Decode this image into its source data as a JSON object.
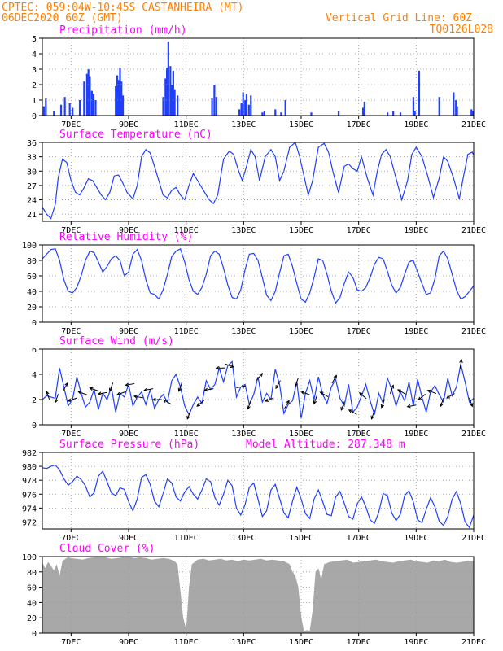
{
  "header": {
    "line1_left": "CPTEC:   059:04W-10:45S   CASTANHEIRA (MT)",
    "line2_left": "06DEC2020 60Z (GMT)",
    "line1_right": "Vertical Grid Line: 60Z",
    "line2_right": "TQ0126L028"
  },
  "x_axis": {
    "tick_labels": [
      "7DEC",
      "9DEC",
      "11DEC",
      "13DEC",
      "15DEC",
      "17DEC",
      "19DEC",
      "21DEC"
    ],
    "tick_days": [
      1,
      3,
      5,
      7,
      9,
      11,
      13,
      15
    ],
    "range_days": [
      0,
      15
    ]
  },
  "colors": {
    "header": "#ff7f00",
    "title": "#ff00ff",
    "series": "#1f3fff",
    "cloud": "#a8a8a8",
    "grid": "#9a9a9a"
  },
  "chart_data": [
    {
      "type": "bar",
      "title": "Precipitation (mm/h)",
      "ylim": [
        0,
        5
      ],
      "yticks": [
        0,
        1,
        2,
        3,
        4,
        5
      ],
      "x": [
        0.05,
        0.12,
        0.4,
        0.65,
        0.78,
        0.95,
        1.05,
        1.3,
        1.45,
        1.55,
        1.6,
        1.65,
        1.72,
        1.78,
        1.85,
        2.55,
        2.6,
        2.65,
        2.7,
        2.75,
        2.8,
        4.2,
        4.28,
        4.33,
        4.38,
        4.45,
        4.5,
        4.55,
        4.6,
        4.7,
        5.9,
        5.98,
        6.05,
        6.85,
        6.92,
        6.98,
        7.05,
        7.1,
        7.18,
        7.25,
        7.65,
        7.72,
        8.1,
        8.3,
        8.45,
        9.35,
        10.3,
        11.15,
        11.2,
        12.0,
        12.2,
        12.45,
        12.9,
        12.95,
        13.1,
        13.8,
        14.3,
        14.38,
        14.42,
        14.92,
        14.97
      ],
      "values": [
        0.6,
        1.1,
        0.3,
        0.7,
        1.2,
        0.8,
        0.5,
        1.0,
        2.2,
        2.7,
        3.0,
        2.5,
        1.6,
        1.4,
        1.0,
        1.9,
        2.6,
        2.3,
        3.1,
        2.2,
        1.3,
        1.2,
        2.4,
        3.1,
        4.8,
        3.2,
        2.0,
        2.9,
        1.7,
        1.3,
        1.1,
        2.0,
        1.2,
        0.4,
        0.8,
        1.5,
        1.0,
        1.4,
        0.7,
        1.3,
        0.2,
        0.3,
        0.4,
        0.2,
        1.0,
        0.2,
        0.3,
        0.5,
        0.9,
        0.2,
        0.3,
        0.2,
        1.2,
        0.3,
        2.9,
        1.2,
        1.5,
        1.0,
        0.6,
        0.4,
        0.3
      ]
    },
    {
      "type": "line",
      "title": "Surface Temperature (nC)",
      "ylim": [
        19.5,
        36
      ],
      "yticks": [
        21,
        24,
        27,
        30,
        33,
        36
      ],
      "x": [
        0.0,
        0.15,
        0.3,
        0.45,
        0.55,
        0.7,
        0.85,
        1.0,
        1.15,
        1.3,
        1.45,
        1.6,
        1.75,
        1.9,
        2.05,
        2.2,
        2.35,
        2.5,
        2.65,
        2.8,
        2.95,
        3.15,
        3.3,
        3.45,
        3.6,
        3.75,
        3.9,
        4.05,
        4.2,
        4.35,
        4.5,
        4.65,
        4.8,
        4.95,
        5.1,
        5.25,
        5.45,
        5.6,
        5.8,
        5.95,
        6.1,
        6.3,
        6.5,
        6.65,
        6.8,
        6.95,
        7.1,
        7.25,
        7.4,
        7.55,
        7.75,
        7.95,
        8.1,
        8.25,
        8.4,
        8.6,
        8.8,
        8.95,
        9.1,
        9.25,
        9.4,
        9.6,
        9.8,
        9.95,
        10.1,
        10.3,
        10.5,
        10.65,
        10.8,
        10.95,
        11.1,
        11.3,
        11.5,
        11.65,
        11.8,
        11.95,
        12.1,
        12.3,
        12.5,
        12.7,
        12.85,
        13.0,
        13.2,
        13.4,
        13.6,
        13.8,
        13.95,
        14.1,
        14.3,
        14.5,
        14.65,
        14.8,
        14.95,
        15.0
      ],
      "values": [
        22.5,
        21.0,
        20.1,
        23.0,
        28.5,
        32.5,
        31.8,
        28.0,
        25.6,
        25.0,
        26.5,
        28.4,
        28.0,
        26.5,
        25.0,
        24.0,
        25.6,
        29.0,
        29.2,
        27.5,
        25.5,
        24.2,
        27.0,
        33.0,
        34.5,
        33.8,
        31.0,
        28.0,
        25.0,
        24.4,
        26.0,
        26.6,
        25.0,
        24.0,
        27.0,
        29.5,
        27.5,
        26.0,
        24.0,
        23.2,
        25.0,
        32.5,
        34.2,
        33.5,
        30.5,
        28.0,
        31.0,
        34.5,
        33.0,
        28.0,
        33.0,
        34.5,
        33.0,
        28.0,
        30.0,
        35.0,
        36.0,
        33.0,
        29.0,
        25.0,
        28.0,
        35.0,
        35.8,
        34.0,
        30.0,
        25.5,
        31.0,
        31.5,
        30.5,
        30.0,
        33.0,
        28.5,
        25.0,
        30.0,
        33.5,
        34.5,
        33.0,
        28.5,
        24.0,
        28.0,
        33.5,
        35.0,
        33.0,
        29.0,
        24.5,
        28.5,
        33.0,
        32.0,
        28.5,
        24.2,
        29.0,
        33.5,
        34.0,
        33.3
      ]
    },
    {
      "type": "line",
      "title": "Relative Humidity (%)",
      "ylim": [
        0,
        100
      ],
      "yticks": [
        0,
        20,
        40,
        60,
        80,
        100
      ],
      "x": [
        0.0,
        0.15,
        0.3,
        0.45,
        0.6,
        0.75,
        0.9,
        1.05,
        1.2,
        1.35,
        1.5,
        1.65,
        1.8,
        1.95,
        2.1,
        2.25,
        2.4,
        2.55,
        2.7,
        2.85,
        3.0,
        3.15,
        3.3,
        3.45,
        3.6,
        3.75,
        3.9,
        4.05,
        4.2,
        4.35,
        4.5,
        4.65,
        4.8,
        4.95,
        5.1,
        5.25,
        5.4,
        5.55,
        5.7,
        5.85,
        6.0,
        6.15,
        6.3,
        6.45,
        6.6,
        6.75,
        6.9,
        7.05,
        7.2,
        7.35,
        7.5,
        7.65,
        7.8,
        7.95,
        8.1,
        8.25,
        8.4,
        8.55,
        8.7,
        8.85,
        9.0,
        9.15,
        9.3,
        9.45,
        9.6,
        9.75,
        9.9,
        10.05,
        10.2,
        10.35,
        10.5,
        10.65,
        10.8,
        10.95,
        11.1,
        11.25,
        11.4,
        11.55,
        11.7,
        11.85,
        12.0,
        12.15,
        12.3,
        12.45,
        12.6,
        12.75,
        12.9,
        13.05,
        13.2,
        13.35,
        13.5,
        13.65,
        13.8,
        13.95,
        14.1,
        14.25,
        14.4,
        14.55,
        14.7,
        14.85,
        15.0
      ],
      "values": [
        82,
        88,
        94,
        95,
        80,
        55,
        40,
        38,
        45,
        60,
        80,
        92,
        90,
        78,
        65,
        72,
        82,
        86,
        80,
        60,
        65,
        88,
        94,
        80,
        55,
        38,
        36,
        30,
        42,
        62,
        85,
        92,
        95,
        78,
        55,
        40,
        36,
        45,
        62,
        86,
        92,
        88,
        70,
        48,
        32,
        30,
        42,
        68,
        88,
        89,
        80,
        58,
        35,
        28,
        40,
        64,
        86,
        88,
        72,
        50,
        30,
        26,
        38,
        58,
        82,
        80,
        62,
        40,
        25,
        32,
        50,
        65,
        58,
        42,
        40,
        45,
        58,
        75,
        84,
        82,
        66,
        48,
        38,
        45,
        62,
        78,
        80,
        65,
        50,
        36,
        38,
        56,
        86,
        92,
        82,
        62,
        42,
        30,
        33,
        40,
        47
      ]
    },
    {
      "type": "line",
      "title": "Surface Wind (m/s)",
      "ylim": [
        0,
        6
      ],
      "yticks": [
        0,
        2,
        4,
        6
      ],
      "x": [
        0.0,
        0.15,
        0.3,
        0.45,
        0.6,
        0.75,
        0.9,
        1.05,
        1.2,
        1.35,
        1.5,
        1.65,
        1.8,
        1.95,
        2.1,
        2.25,
        2.4,
        2.55,
        2.7,
        2.85,
        3.0,
        3.15,
        3.3,
        3.45,
        3.6,
        3.75,
        3.9,
        4.05,
        4.2,
        4.35,
        4.5,
        4.65,
        4.8,
        4.95,
        5.1,
        5.25,
        5.4,
        5.55,
        5.7,
        5.85,
        6.0,
        6.15,
        6.3,
        6.45,
        6.6,
        6.75,
        6.9,
        7.05,
        7.2,
        7.35,
        7.5,
        7.65,
        7.8,
        7.95,
        8.1,
        8.25,
        8.4,
        8.55,
        8.7,
        8.85,
        9.0,
        9.15,
        9.3,
        9.45,
        9.6,
        9.75,
        9.9,
        10.05,
        10.2,
        10.35,
        10.5,
        10.65,
        10.8,
        10.95,
        11.1,
        11.25,
        11.4,
        11.55,
        11.7,
        11.85,
        12.0,
        12.15,
        12.3,
        12.45,
        12.6,
        12.75,
        12.9,
        13.05,
        13.2,
        13.35,
        13.5,
        13.65,
        13.8,
        13.95,
        14.1,
        14.25,
        14.4,
        14.55,
        14.7,
        14.85,
        15.0
      ],
      "values": [
        2.0,
        2.3,
        2.2,
        2.1,
        4.5,
        3.0,
        1.5,
        2.0,
        3.8,
        2.5,
        1.4,
        1.8,
        2.8,
        1.2,
        2.5,
        2.0,
        3.0,
        1.0,
        2.5,
        2.2,
        3.2,
        1.5,
        2.2,
        2.6,
        1.6,
        2.8,
        1.3,
        2.0,
        2.4,
        1.8,
        3.5,
        4.0,
        3.0,
        1.5,
        0.8,
        1.6,
        2.2,
        1.7,
        3.5,
        2.8,
        3.2,
        4.5,
        3.4,
        4.7,
        5.0,
        2.2,
        3.0,
        3.2,
        1.6,
        2.4,
        3.8,
        1.8,
        2.5,
        2.0,
        4.4,
        3.2,
        0.9,
        1.6,
        1.9,
        3.4,
        0.5,
        2.5,
        3.5,
        2.0,
        3.8,
        2.4,
        1.7,
        3.0,
        3.6,
        2.1,
        1.5,
        3.2,
        1.0,
        1.4,
        2.3,
        3.2,
        1.9,
        0.8,
        2.5,
        1.7,
        3.7,
        2.8,
        1.5,
        2.6,
        1.9,
        3.4,
        1.5,
        3.6,
        2.2,
        1.0,
        2.6,
        3.1,
        2.4,
        1.8,
        3.7,
        2.3,
        3.0,
        4.8,
        3.4,
        1.8,
        2.1
      ],
      "arrows": {
        "x": [
          0.2,
          0.5,
          0.8,
          1.05,
          1.4,
          1.8,
          2.1,
          2.4,
          2.75,
          3.05,
          3.35,
          3.7,
          4.0,
          4.35,
          4.8,
          5.1,
          5.5,
          5.8,
          6.2,
          6.5,
          6.9,
          7.2,
          7.55,
          7.9,
          8.2,
          8.5,
          8.85,
          9.15,
          9.5,
          9.8,
          10.15,
          10.45,
          10.8,
          11.15,
          11.5,
          11.85,
          12.15,
          12.5,
          12.85,
          13.2,
          13.55,
          13.9,
          14.2,
          14.55,
          14.9
        ],
        "dir_deg": [
          340,
          200,
          30,
          250,
          290,
          290,
          260,
          200,
          250,
          260,
          280,
          260,
          270,
          300,
          200,
          200,
          230,
          260,
          270,
          110,
          80,
          200,
          40,
          250,
          210,
          30,
          200,
          290,
          200,
          300,
          30,
          200,
          300,
          310,
          200,
          200,
          20,
          300,
          260,
          230,
          290,
          200,
          240,
          10,
          160
        ]
      }
    },
    {
      "type": "line",
      "title": "Surface Pressure (hPa)",
      "subtitle": "Model Altitude: 287.348 m",
      "ylim": [
        971,
        982
      ],
      "yticks": [
        972,
        974,
        976,
        978,
        980,
        982
      ],
      "x": [
        0.0,
        0.15,
        0.3,
        0.45,
        0.6,
        0.75,
        0.9,
        1.05,
        1.2,
        1.35,
        1.5,
        1.65,
        1.8,
        1.95,
        2.1,
        2.25,
        2.4,
        2.55,
        2.7,
        2.85,
        3.0,
        3.15,
        3.3,
        3.45,
        3.6,
        3.75,
        3.9,
        4.05,
        4.2,
        4.35,
        4.5,
        4.65,
        4.8,
        4.95,
        5.1,
        5.25,
        5.4,
        5.55,
        5.7,
        5.85,
        6.0,
        6.15,
        6.3,
        6.45,
        6.6,
        6.75,
        6.9,
        7.05,
        7.2,
        7.35,
        7.5,
        7.65,
        7.8,
        7.95,
        8.1,
        8.25,
        8.4,
        8.55,
        8.7,
        8.85,
        9.0,
        9.15,
        9.3,
        9.45,
        9.6,
        9.75,
        9.9,
        10.05,
        10.2,
        10.35,
        10.5,
        10.65,
        10.8,
        10.95,
        11.1,
        11.25,
        11.4,
        11.55,
        11.7,
        11.85,
        12.0,
        12.15,
        12.3,
        12.45,
        12.6,
        12.75,
        12.9,
        13.05,
        13.2,
        13.35,
        13.5,
        13.65,
        13.8,
        13.95,
        14.1,
        14.25,
        14.4,
        14.55,
        14.7,
        14.85,
        15.0
      ],
      "values": [
        979.8,
        979.7,
        980.0,
        980.2,
        979.5,
        978.2,
        977.3,
        977.8,
        978.6,
        978.1,
        977.2,
        975.6,
        976.2,
        978.6,
        979.3,
        977.8,
        976.2,
        975.8,
        976.9,
        976.7,
        974.9,
        973.6,
        975.3,
        978.4,
        978.8,
        977.4,
        975.0,
        974.2,
        976.1,
        978.2,
        977.6,
        975.6,
        975.0,
        976.3,
        977.1,
        976.0,
        975.3,
        976.6,
        978.2,
        977.8,
        975.5,
        974.4,
        976.0,
        978.0,
        977.2,
        974.0,
        973.0,
        974.5,
        977.0,
        977.6,
        975.3,
        972.8,
        973.6,
        976.6,
        977.4,
        975.4,
        973.3,
        972.6,
        975.0,
        977.0,
        975.3,
        973.2,
        972.5,
        975.3,
        976.6,
        974.9,
        973.1,
        972.9,
        975.6,
        976.4,
        974.7,
        972.8,
        972.4,
        974.6,
        975.6,
        974.2,
        972.3,
        971.8,
        973.4,
        976.1,
        975.8,
        973.3,
        972.2,
        973.1,
        975.8,
        976.5,
        974.9,
        972.3,
        971.9,
        973.8,
        975.5,
        974.2,
        972.1,
        971.5,
        972.8,
        975.3,
        976.4,
        974.6,
        972.0,
        971.2,
        973.0
      ]
    },
    {
      "type": "area",
      "title": "Cloud Cover (%)",
      "ylim": [
        0,
        100
      ],
      "yticks": [
        0,
        20,
        40,
        60,
        80,
        100
      ],
      "x": [
        0.0,
        0.1,
        0.2,
        0.3,
        0.4,
        0.5,
        0.6,
        0.7,
        0.8,
        0.9,
        1.0,
        1.2,
        1.4,
        1.6,
        1.8,
        2.0,
        2.2,
        2.4,
        2.6,
        2.8,
        3.0,
        3.2,
        3.4,
        3.6,
        3.8,
        4.0,
        4.2,
        4.4,
        4.6,
        4.7,
        4.8,
        4.9,
        5.0,
        5.1,
        5.2,
        5.4,
        5.6,
        5.8,
        6.0,
        6.2,
        6.4,
        6.6,
        6.8,
        7.0,
        7.2,
        7.4,
        7.6,
        7.8,
        8.0,
        8.2,
        8.4,
        8.6,
        8.7,
        8.8,
        8.9,
        9.0,
        9.1,
        9.2,
        9.3,
        9.4,
        9.5,
        9.6,
        9.7,
        9.8,
        10.0,
        10.2,
        10.4,
        10.6,
        10.8,
        11.0,
        11.2,
        11.4,
        11.6,
        11.8,
        12.0,
        12.2,
        12.4,
        12.6,
        12.8,
        13.0,
        13.2,
        13.4,
        13.6,
        13.8,
        14.0,
        14.2,
        14.4,
        14.6,
        14.8,
        15.0
      ],
      "values": [
        92,
        85,
        93,
        88,
        82,
        90,
        75,
        94,
        97,
        99,
        98,
        97,
        96,
        98,
        99,
        100,
        99,
        97,
        98,
        99,
        100,
        98,
        99,
        98,
        96,
        97,
        98,
        97,
        94,
        90,
        55,
        20,
        5,
        60,
        90,
        96,
        97,
        95,
        96,
        97,
        95,
        96,
        94,
        96,
        95,
        96,
        97,
        95,
        96,
        95,
        94,
        90,
        80,
        75,
        60,
        22,
        2,
        4,
        3,
        30,
        80,
        85,
        70,
        90,
        93,
        94,
        95,
        96,
        92,
        93,
        94,
        95,
        96,
        94,
        93,
        92,
        94,
        95,
        96,
        94,
        93,
        92,
        95,
        94,
        96,
        93,
        92,
        93,
        95,
        94
      ]
    }
  ]
}
